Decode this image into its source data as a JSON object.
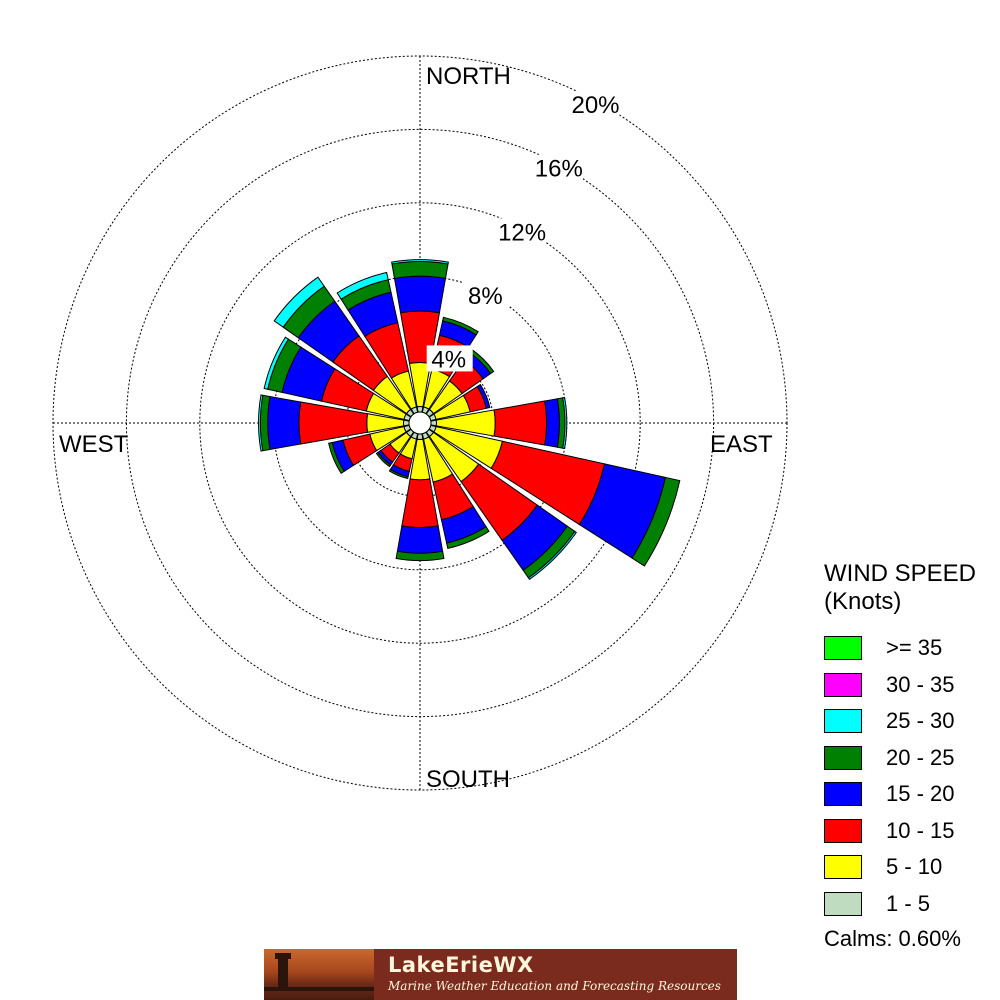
{
  "chart_data": {
    "type": "wind-rose",
    "directions": [
      "N",
      "NNE",
      "NE",
      "ENE",
      "E",
      "ESE",
      "SE",
      "SSE",
      "S",
      "SSW",
      "SW",
      "WSW",
      "W",
      "WNW",
      "NW",
      "NNW"
    ],
    "direction_labels": {
      "north": "NORTH",
      "east": "EAST",
      "south": "SOUTH",
      "west": "WEST"
    },
    "ring_labels": [
      "4%",
      "8%",
      "12%",
      "16%",
      "20%"
    ],
    "ring_values": [
      4,
      8,
      12,
      16,
      20
    ],
    "rmax": 20,
    "calm_radius_pct": 0.6,
    "bins": [
      {
        "label": "1 - 5",
        "color": "#c0dcc0"
      },
      {
        "label": "5 - 10",
        "color": "#ffff00"
      },
      {
        "label": "10 - 15",
        "color": "#ff0000"
      },
      {
        "label": "15 - 20",
        "color": "#0000ff"
      },
      {
        "label": "20 - 25",
        "color": "#008000"
      },
      {
        "label": "25 - 30",
        "color": "#00ffff"
      },
      {
        "label": "30 - 35",
        "color": "#ff00ff"
      },
      {
        "label": ">= 35",
        "color": "#00ff00"
      }
    ],
    "values": {
      "N": [
        0.3,
        2.4,
        2.8,
        1.9,
        0.8,
        0.1,
        0,
        0
      ],
      "NNE": [
        0.3,
        2.1,
        1.9,
        0.8,
        0.2,
        0,
        0,
        0
      ],
      "NE": [
        0.3,
        1.9,
        1.4,
        0.5,
        0.2,
        0,
        0,
        0
      ],
      "ENE": [
        0.3,
        1.9,
        0.9,
        0.2,
        0,
        0,
        0,
        0
      ],
      "E": [
        0.3,
        3.2,
        2.8,
        0.7,
        0.3,
        0.1,
        0,
        0
      ],
      "ESE": [
        0.3,
        3.7,
        5.7,
        3.4,
        0.8,
        0,
        0,
        0
      ],
      "SE": [
        0.3,
        3.0,
        3.9,
        2.0,
        0.5,
        0.1,
        0,
        0
      ],
      "SSE": [
        0.3,
        2.4,
        2.1,
        1.3,
        0.3,
        0,
        0,
        0
      ],
      "S": [
        0.3,
        2.2,
        2.6,
        1.4,
        0.4,
        0,
        0,
        0
      ],
      "SSW": [
        0.3,
        1.1,
        0.7,
        0.3,
        0.1,
        0,
        0,
        0
      ],
      "SW": [
        0.3,
        1.1,
        0.6,
        0.2,
        0.1,
        0,
        0,
        0
      ],
      "WSW": [
        0.3,
        1.9,
        1.5,
        0.6,
        0.2,
        0,
        0,
        0
      ],
      "W": [
        0.3,
        2.0,
        3.7,
        1.7,
        0.4,
        0.1,
        0,
        0
      ],
      "WNW": [
        0.3,
        2.1,
        2.5,
        2.2,
        0.8,
        0.2,
        0,
        0
      ],
      "NW": [
        0.3,
        2.2,
        2.7,
        2.3,
        1.0,
        0.6,
        0,
        0
      ],
      "NNW": [
        0.3,
        2.0,
        2.7,
        1.7,
        0.7,
        0.4,
        0,
        0
      ]
    }
  },
  "legend": {
    "title_line1": "WIND SPEED",
    "title_line2": "(Knots)",
    "items": [
      {
        "label": ">= 35",
        "color": "#00ff00"
      },
      {
        "label": "30 - 35",
        "color": "#ff00ff"
      },
      {
        "label": "25 - 30",
        "color": "#00ffff"
      },
      {
        "label": "20 - 25",
        "color": "#008000"
      },
      {
        "label": "15 - 20",
        "color": "#0000ff"
      },
      {
        "label": "10 - 15",
        "color": "#ff0000"
      },
      {
        "label": "5 - 10",
        "color": "#ffff00"
      },
      {
        "label": "1 - 5",
        "color": "#c0dcc0"
      }
    ],
    "calms": "Calms: 0.60%"
  },
  "banner": {
    "title": "LakeErieWX",
    "subtitle": "Marine Weather Education and Forecasting Resources"
  }
}
